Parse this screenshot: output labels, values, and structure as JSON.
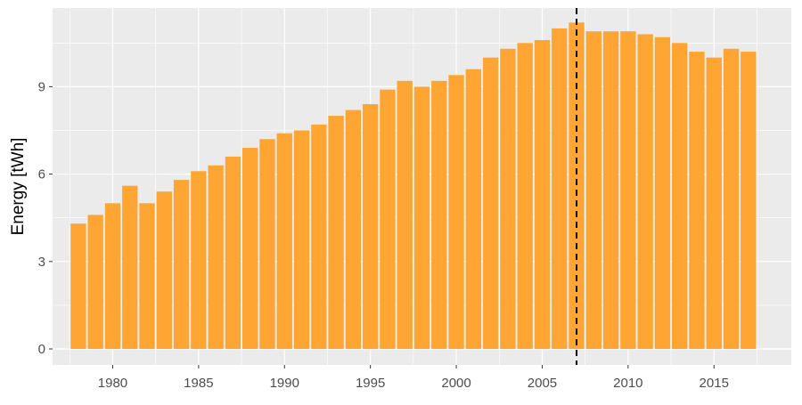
{
  "chart_data": {
    "type": "bar",
    "title": "",
    "xlabel": "",
    "ylabel": "Energy [tWh]",
    "x": [
      1978,
      1979,
      1980,
      1981,
      1982,
      1983,
      1984,
      1985,
      1986,
      1987,
      1988,
      1989,
      1990,
      1991,
      1992,
      1993,
      1994,
      1995,
      1996,
      1997,
      1998,
      1999,
      2000,
      2001,
      2002,
      2003,
      2004,
      2005,
      2006,
      2007,
      2008,
      2009,
      2010,
      2011,
      2012,
      2013,
      2014,
      2015,
      2016,
      2017
    ],
    "values": [
      4.3,
      4.6,
      5.0,
      5.6,
      5.0,
      5.4,
      5.8,
      6.1,
      6.3,
      6.6,
      6.9,
      7.2,
      7.4,
      7.5,
      7.7,
      8.0,
      8.2,
      8.4,
      8.9,
      9.2,
      9.0,
      9.2,
      9.4,
      9.6,
      10.0,
      10.3,
      10.5,
      10.6,
      11.0,
      11.2,
      10.9,
      10.9,
      10.9,
      10.8,
      10.7,
      10.5,
      10.2,
      10.0,
      10.3,
      10.2
    ],
    "xlim": [
      1976.5,
      2019.5
    ],
    "ylim": [
      -0.55,
      11.7
    ],
    "x_ticks": [
      1980,
      1985,
      1990,
      1995,
      2000,
      2005,
      2010,
      2015
    ],
    "x_tick_labels": [
      "1980",
      "1985",
      "1990",
      "1995",
      "2000",
      "2005",
      "2010",
      "2015"
    ],
    "y_ticks": [
      0,
      3,
      6,
      9
    ],
    "y_tick_labels": [
      "0",
      "3",
      "6",
      "9"
    ],
    "vline": {
      "x": 2007,
      "style": "dashed",
      "color": "#000000"
    },
    "grid": true,
    "legend": "none",
    "colors": {
      "bar": "#FFA533",
      "panel": "#EBEBEB",
      "grid_major": "#FFFFFF",
      "tick_text": "#4D4D4D",
      "axis_title": "#000000"
    }
  }
}
